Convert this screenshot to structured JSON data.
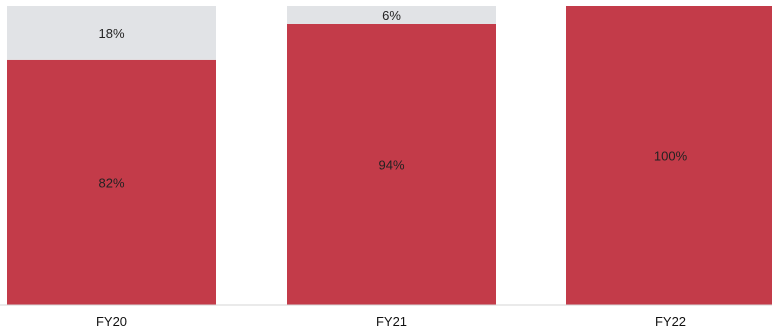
{
  "chart_data": {
    "type": "bar",
    "stacked": true,
    "percent_stacked": true,
    "categories": [
      "FY20",
      "FY21",
      "FY22"
    ],
    "series": [
      {
        "values": [
          82,
          94,
          100
        ],
        "color": "#c33b49"
      },
      {
        "values": [
          18,
          6,
          0
        ],
        "color": "#e1e3e6"
      }
    ],
    "data_labels": [
      [
        "82%",
        "94%",
        "100%"
      ],
      [
        "18%",
        "6%",
        ""
      ]
    ],
    "ylim": [
      0,
      100
    ],
    "grid": false,
    "legend": "none",
    "title": "",
    "xlabel": "",
    "ylabel": ""
  }
}
